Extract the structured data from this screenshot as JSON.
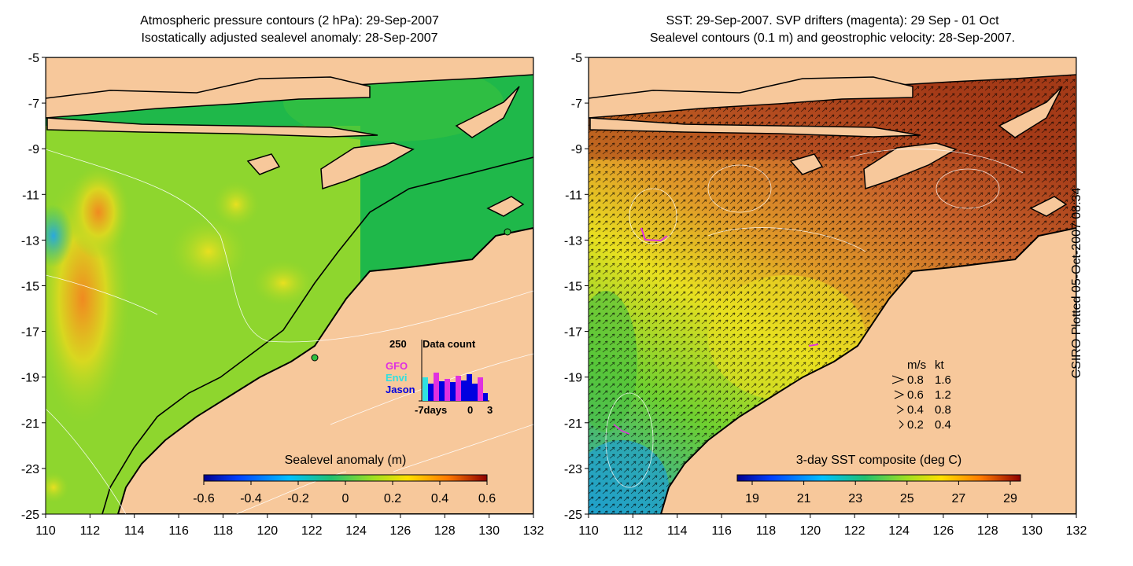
{
  "left_panel": {
    "title_line1": "Atmospheric pressure contours (2 hPa): 29-Sep-2007",
    "title_line2": "Isostatically adjusted sealevel anomaly: 28-Sep-2007",
    "colorbar_label": "Sealevel anomaly (m)",
    "colorbar_ticks": [
      "-0.6",
      "-0.4",
      "-0.2",
      "0",
      "0.2",
      "0.4",
      "0.6"
    ],
    "data_count": {
      "title": "Data count",
      "max_label": "250",
      "legend": [
        "GFO",
        "Envi",
        "Jason"
      ],
      "x_labels": [
        "-7days",
        "0",
        "3"
      ]
    }
  },
  "right_panel": {
    "title_line1": "SST: 29-Sep-2007. SVP drifters (magenta): 29 Sep - 01 Oct",
    "title_line2": "Sealevel contours (0.1 m) and geostrophic velocity: 28-Sep-2007.",
    "colorbar_label": "3-day SST composite (deg C)",
    "colorbar_ticks": [
      "19",
      "21",
      "23",
      "25",
      "27",
      "29"
    ],
    "velocity_legend": {
      "header_ms": "m/s",
      "header_kt": "kt",
      "rows": [
        {
          "ms": "0.8",
          "kt": "1.6"
        },
        {
          "ms": "0.6",
          "kt": "1.2"
        },
        {
          "ms": "0.4",
          "kt": "0.8"
        },
        {
          "ms": "0.2",
          "kt": "0.4"
        }
      ]
    }
  },
  "axes": {
    "x_ticks": [
      "110",
      "112",
      "114",
      "116",
      "118",
      "120",
      "122",
      "124",
      "126",
      "128",
      "130",
      "132"
    ],
    "y_ticks": [
      "-5",
      "-7",
      "-9",
      "-11",
      "-13",
      "-15",
      "-17",
      "-19",
      "-21",
      "-23",
      "-25"
    ]
  },
  "side_label": "CSIRO Plotted 05-Oct-2007 08:34",
  "colors": {
    "land": "#f7c89b",
    "sea_left": "#1fb84a",
    "sea_right_warm": "#b5481a",
    "drifters": "#e030e0"
  }
}
